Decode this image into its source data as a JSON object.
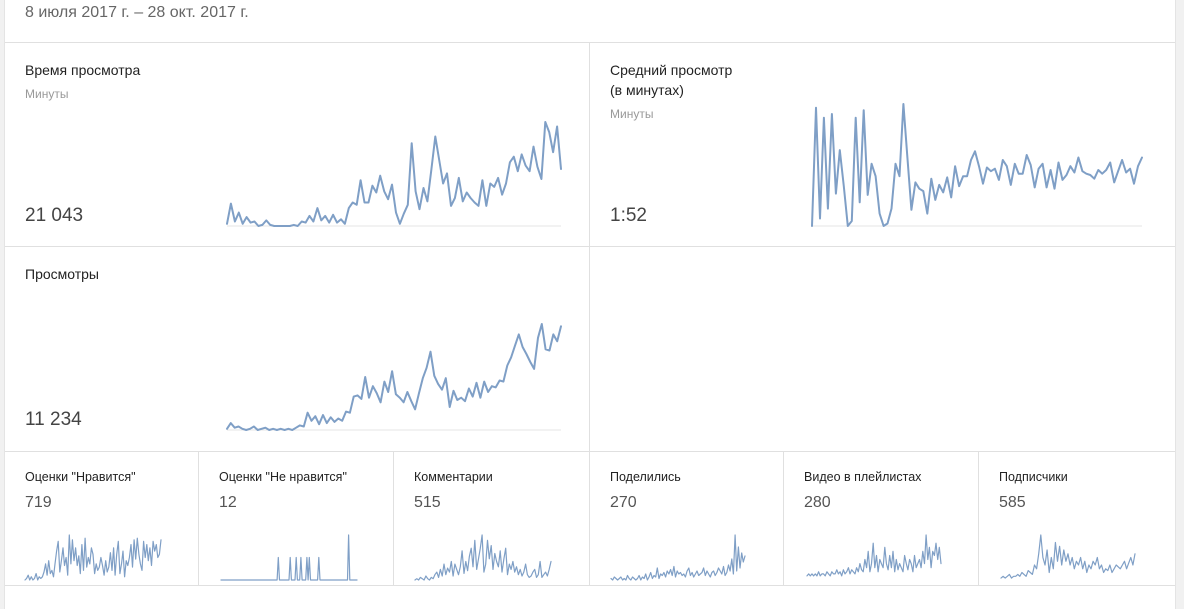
{
  "date_range": "8 июля 2017 г. – 28 окт. 2017 г.",
  "accent_color": "#7f9fc6",
  "cards": {
    "watch_time": {
      "title": "Время просмотра",
      "subtitle": "Минуты",
      "value": "21 043",
      "series": [
        2,
        20,
        4,
        12,
        2,
        8,
        3,
        4,
        0,
        1,
        5,
        1,
        0,
        0,
        0,
        0,
        0,
        1,
        0,
        4,
        3,
        9,
        4,
        16,
        5,
        9,
        3,
        10,
        3,
        6,
        2,
        16,
        21,
        19,
        41,
        21,
        21,
        36,
        30,
        45,
        31,
        24,
        37,
        12,
        2,
        11,
        19,
        74,
        31,
        15,
        34,
        22,
        50,
        80,
        59,
        38,
        47,
        18,
        25,
        43,
        22,
        30,
        25,
        21,
        18,
        41,
        18,
        38,
        35,
        43,
        28,
        38,
        57,
        62,
        49,
        64,
        54,
        49,
        71,
        53,
        42,
        93,
        84,
        66,
        89,
        51
      ]
    },
    "avg_view": {
      "title_line1": "Средний просмотр",
      "title_line2": "(в минутах)",
      "subtitle": "Минуты",
      "value": "1:52",
      "series": [
        0,
        95,
        6,
        87,
        14,
        90,
        26,
        61,
        32,
        0,
        4,
        87,
        19,
        93,
        25,
        50,
        40,
        10,
        0,
        2,
        14,
        50,
        40,
        98,
        55,
        13,
        35,
        30,
        28,
        10,
        38,
        21,
        33,
        27,
        39,
        23,
        48,
        32,
        40,
        40,
        53,
        60,
        48,
        34,
        47,
        44,
        46,
        37,
        53,
        48,
        33,
        50,
        42,
        42,
        57,
        49,
        31,
        46,
        50,
        31,
        45,
        30,
        51,
        37,
        41,
        48,
        43,
        55,
        44,
        42,
        41,
        38,
        45,
        42,
        45,
        51,
        35,
        44,
        53,
        43,
        46,
        34,
        48,
        55
      ]
    },
    "views": {
      "title": "Просмотры",
      "value": "11 234",
      "series": [
        1,
        6,
        2,
        3,
        1,
        0,
        1,
        3,
        0,
        1,
        2,
        0,
        1,
        0,
        1,
        0,
        1,
        0,
        2,
        4,
        3,
        15,
        8,
        12,
        5,
        13,
        6,
        11,
        7,
        10,
        8,
        16,
        15,
        29,
        30,
        27,
        46,
        28,
        38,
        32,
        24,
        42,
        33,
        51,
        31,
        28,
        24,
        33,
        25,
        18,
        32,
        45,
        54,
        68,
        47,
        40,
        35,
        45,
        20,
        34,
        26,
        28,
        25,
        36,
        29,
        41,
        28,
        42,
        33,
        38,
        37,
        43,
        42,
        56,
        63,
        73,
        83,
        72,
        66,
        59,
        53,
        80,
        92,
        70,
        69,
        83,
        77,
        90
      ]
    }
  },
  "small_stats": [
    {
      "title": "Оценки \"Нравится\"",
      "value": "719",
      "series": [
        0,
        1,
        3,
        0,
        2,
        0,
        1,
        4,
        0,
        2,
        1,
        2,
        5,
        10,
        3,
        12,
        4,
        6,
        2,
        10,
        18,
        24,
        5,
        12,
        20,
        9,
        14,
        3,
        28,
        10,
        25,
        12,
        20,
        9,
        15,
        4,
        22,
        6,
        26,
        8,
        14,
        10,
        20,
        16,
        4,
        10,
        6,
        8,
        14,
        9,
        3,
        12,
        5,
        8,
        17,
        6,
        20,
        3,
        16,
        24,
        4,
        10,
        18,
        2,
        12,
        9,
        14,
        22,
        8,
        25,
        13,
        26,
        16,
        10,
        6,
        24,
        14,
        22,
        12,
        20,
        9,
        24,
        18,
        22,
        14,
        16,
        25
      ]
    },
    {
      "title": "Оценки \"Не нравится\"",
      "value": "12",
      "series": [
        0,
        0,
        0,
        0,
        0,
        0,
        0,
        0,
        0,
        0,
        0,
        0,
        0,
        0,
        0,
        0,
        0,
        0,
        0,
        0,
        0,
        0,
        0,
        0,
        0,
        0,
        0,
        0,
        0,
        0,
        0,
        0,
        0,
        0,
        0,
        0,
        0,
        0,
        0,
        0,
        0,
        0,
        0,
        0,
        0,
        0,
        0,
        0,
        1,
        0,
        0,
        0,
        0,
        0,
        0,
        0,
        0,
        0,
        1,
        0,
        0,
        0,
        0,
        1,
        0,
        0,
        0,
        1,
        0,
        0,
        0,
        0,
        1,
        0,
        1,
        0,
        0,
        0,
        0,
        0,
        0,
        0,
        1,
        0,
        0,
        0,
        0,
        0,
        0,
        0,
        0,
        0,
        0,
        0,
        0,
        0,
        0,
        0,
        0,
        0,
        0,
        0,
        0,
        0,
        0,
        0,
        0,
        2,
        0,
        0,
        0,
        0,
        0,
        0,
        0
      ]
    },
    {
      "title": "Комментарии",
      "value": "515",
      "series": [
        0,
        1,
        0,
        2,
        1,
        0,
        3,
        1,
        0,
        2,
        1,
        4,
        6,
        2,
        8,
        3,
        12,
        4,
        9,
        6,
        14,
        3,
        12,
        8,
        4,
        10,
        22,
        5,
        14,
        7,
        18,
        24,
        10,
        30,
        8,
        16,
        24,
        34,
        6,
        12,
        30,
        16,
        26,
        8,
        20,
        14,
        10,
        22,
        6,
        16,
        24,
        4,
        12,
        8,
        14,
        6,
        10,
        4,
        8,
        3,
        6,
        12,
        4,
        2,
        3,
        6,
        8,
        2,
        4,
        14,
        2,
        4,
        6,
        3,
        8,
        14
      ]
    },
    {
      "title": "Поделились",
      "value": "270",
      "series": [
        1,
        0,
        2,
        1,
        0,
        1,
        2,
        0,
        1,
        0,
        3,
        1,
        0,
        2,
        1,
        0,
        1,
        3,
        0,
        2,
        1,
        4,
        0,
        2,
        5,
        1,
        3,
        2,
        8,
        1,
        4,
        3,
        5,
        2,
        6,
        4,
        7,
        3,
        9,
        2,
        6,
        4,
        5,
        3,
        4,
        2,
        6,
        8,
        3,
        5,
        2,
        4,
        6,
        3,
        4,
        5,
        8,
        3,
        6,
        4,
        2,
        5,
        6,
        3,
        5,
        8,
        6,
        4,
        9,
        3,
        5,
        10,
        6,
        14,
        4,
        30,
        6,
        22,
        8,
        18,
        12,
        16
      ]
    },
    {
      "title": "Видео в плейлистах",
      "value": "280",
      "series": [
        2,
        3,
        2,
        3,
        2,
        3,
        2,
        4,
        2,
        3,
        3,
        2,
        4,
        3,
        2,
        4,
        3,
        3,
        5,
        3,
        4,
        2,
        5,
        3,
        4,
        6,
        3,
        5,
        4,
        3,
        6,
        4,
        8,
        5,
        4,
        10,
        6,
        14,
        4,
        8,
        18,
        6,
        12,
        4,
        10,
        8,
        6,
        16,
        8,
        5,
        12,
        6,
        14,
        4,
        10,
        5,
        8,
        6,
        4,
        12,
        8,
        5,
        10,
        8,
        4,
        12,
        6,
        8,
        10,
        6,
        14,
        8,
        22,
        10,
        16,
        6,
        14,
        12,
        18,
        10,
        16,
        8
      ]
    },
    {
      "title": "Подписчики",
      "value": "585",
      "series": [
        1,
        2,
        1,
        2,
        3,
        1,
        2,
        2,
        3,
        2,
        4,
        3,
        2,
        5,
        4,
        3,
        8,
        6,
        14,
        24,
        12,
        8,
        16,
        4,
        12,
        6,
        20,
        10,
        18,
        8,
        16,
        10,
        14,
        8,
        12,
        6,
        10,
        8,
        12,
        6,
        10,
        4,
        8,
        6,
        10,
        8,
        12,
        6,
        8,
        4,
        6,
        5,
        8,
        4,
        6,
        8,
        7,
        6,
        8,
        10,
        6,
        9,
        12,
        8,
        14
      ]
    }
  ]
}
